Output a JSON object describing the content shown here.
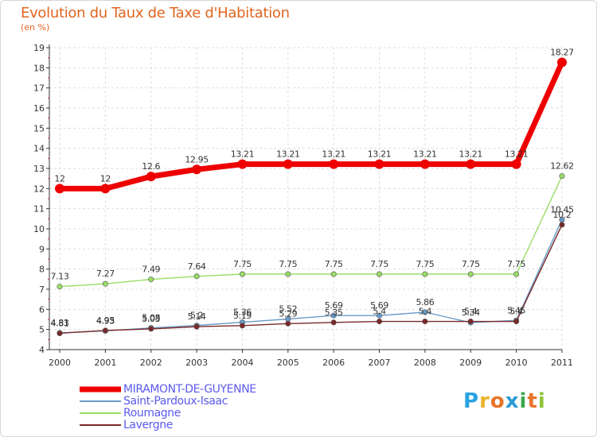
{
  "header": {
    "title": "Evolution du Taux de Taxe d'Habitation",
    "unit": "(en %)"
  },
  "chart_data": {
    "type": "line",
    "title": "Evolution du Taux de Taxe d'Habitation",
    "ylabel": "(en %)",
    "xlabel": "",
    "ylim": [
      4,
      19
    ],
    "yticks": [
      "4",
      "5",
      "6",
      "7",
      "8",
      "9",
      "10",
      "11",
      "12",
      "13",
      "14",
      "15",
      "16",
      "17",
      "18",
      "19"
    ],
    "categories": [
      "2000",
      "2001",
      "2002",
      "2003",
      "2004",
      "2005",
      "2006",
      "2007",
      "2008",
      "2009",
      "2010",
      "2011"
    ],
    "grid": true,
    "series": [
      {
        "name": "MIRAMONT-DE-GUYENNE",
        "color": "#ee0000",
        "values": [
          12,
          12,
          12.6,
          12.95,
          13.21,
          13.21,
          13.21,
          13.21,
          13.21,
          13.21,
          13.21,
          18.27
        ],
        "labels": [
          "12",
          "12",
          "12.6",
          "12.95",
          "13.21",
          "13.21",
          "13.21",
          "13.21",
          "13.21",
          "13.21",
          "13.21",
          "18.27"
        ]
      },
      {
        "name": "Saint-Pardoux-Isaac",
        "color": "#6a9cc8",
        "values": [
          4.83,
          4.93,
          5.08,
          5.2,
          5.36,
          5.52,
          5.69,
          5.69,
          5.86,
          5.34,
          5.45,
          10.45
        ],
        "labels": [
          "4.83",
          "4.93",
          "5.08",
          "5.2",
          "5.36",
          "5.52",
          "5.69",
          "5.69",
          "5.86",
          "5.34",
          "5.45",
          "10.45"
        ]
      },
      {
        "name": "Roumagne",
        "color": "#99dd66",
        "values": [
          7.13,
          7.27,
          7.49,
          7.64,
          7.75,
          7.75,
          7.75,
          7.75,
          7.75,
          7.75,
          7.75,
          12.62
        ],
        "labels": [
          "7.13",
          "7.27",
          "7.49",
          "7.64",
          "7.75",
          "7.75",
          "7.75",
          "7.75",
          "7.75",
          "7.75",
          "7.75",
          "12.62"
        ]
      },
      {
        "name": "Lavergne",
        "color": "#7a2828",
        "values": [
          4.81,
          4.95,
          5.03,
          5.14,
          5.19,
          5.29,
          5.35,
          5.4,
          5.4,
          5.4,
          5.4,
          10.2
        ],
        "labels": [
          "4.81",
          "4.95",
          "5.03",
          "5.14",
          "5.19",
          "5.29",
          "5.35",
          "5.4",
          "5.4",
          "5.4",
          "5.4",
          "10.2"
        ]
      }
    ]
  },
  "legend": {
    "items": [
      "MIRAMONT-DE-GUYENNE",
      "Saint-Pardoux-Isaac",
      "Roumagne",
      "Lavergne"
    ]
  },
  "logo": {
    "letters": [
      "P",
      "r",
      "o",
      "x",
      "i",
      "t",
      "i"
    ],
    "colors": [
      "#29a3e0",
      "#e8b52a",
      "#e8742a",
      "#2b9ad6",
      "#3aa84a",
      "#e8742a",
      "#8fc43a"
    ]
  }
}
